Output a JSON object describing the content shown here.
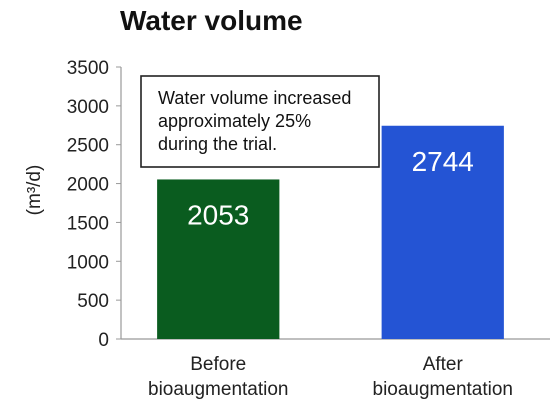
{
  "chart_data": {
    "type": "bar",
    "title": "Water volume",
    "xlabel": "",
    "ylabel": "(m³/d)",
    "ylim": [
      0,
      3500
    ],
    "yticks": [
      0,
      500,
      1000,
      1500,
      2000,
      2500,
      3000,
      3500
    ],
    "categories": [
      "Before bioaugmentation",
      "After bioaugmentation"
    ],
    "category_lines": [
      [
        "Before",
        "bioaugmentation"
      ],
      [
        "After",
        "bioaugmentation"
      ]
    ],
    "values": [
      2053,
      2744
    ],
    "data_labels": [
      "2053",
      "2744"
    ],
    "colors": [
      "#0a5c1f",
      "#2454d4"
    ],
    "grid": false,
    "legend": "none",
    "annotation": {
      "lines": [
        "Water volume increased",
        "approximately 25%",
        "during the trial."
      ]
    }
  }
}
